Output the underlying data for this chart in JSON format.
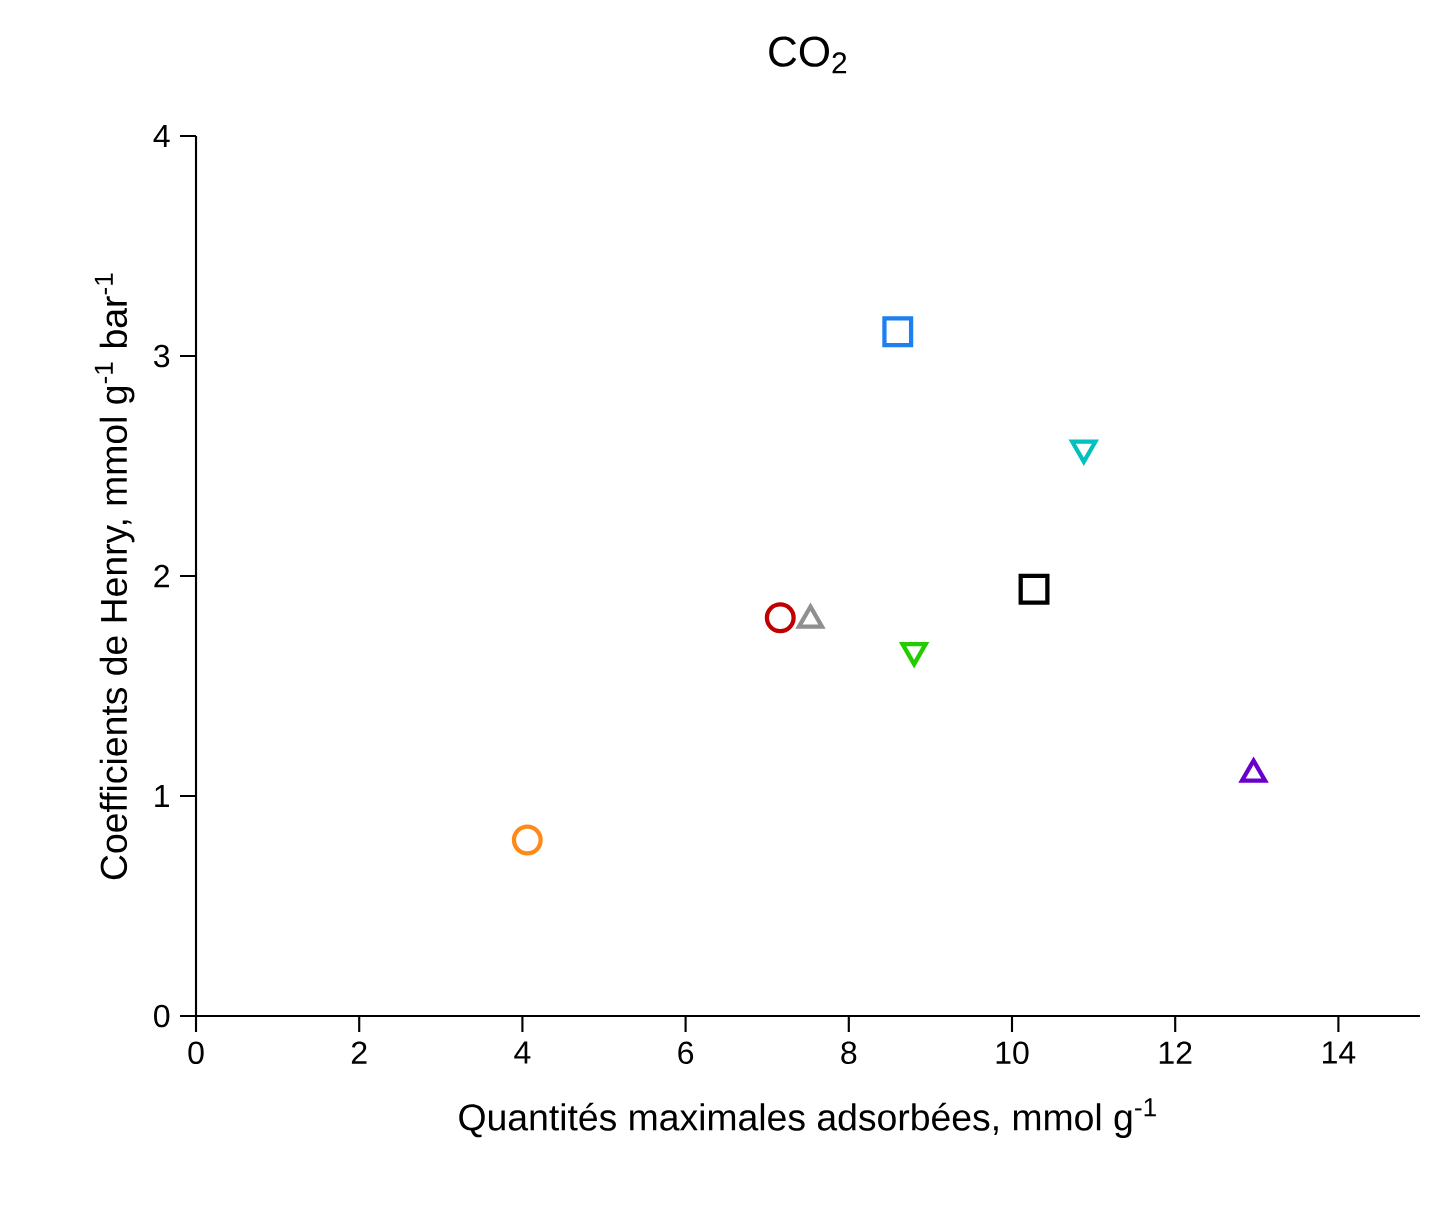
{
  "chart_data": {
    "type": "scatter",
    "title": "CO$_{2}$",
    "xlabel": "Quantités maximales adsorbées, mmol g$^{-1}$",
    "ylabel": "Coefficients de Henry, mmol g$^{-1}$ bar$^{-1}$",
    "xlim": [
      0,
      15
    ],
    "ylim": [
      0,
      4
    ],
    "xticks": [
      0,
      2,
      4,
      6,
      8,
      10,
      12,
      14
    ],
    "yticks": [
      0,
      1,
      2,
      3,
      4
    ],
    "grid": false,
    "series": [
      {
        "color": "#1e7ff0",
        "marker": "square",
        "x": [
          8.6
        ],
        "values": [
          3.11
        ]
      },
      {
        "color": "#00c0c0",
        "marker": "triangle-down",
        "x": [
          10.88
        ],
        "values": [
          2.58
        ]
      },
      {
        "color": "#000000",
        "marker": "square",
        "x": [
          10.27
        ],
        "values": [
          1.94
        ]
      },
      {
        "color": "#22cc00",
        "marker": "triangle-down",
        "x": [
          8.8
        ],
        "values": [
          1.66
        ]
      },
      {
        "color": "#909090",
        "marker": "triangle",
        "x": [
          7.53
        ],
        "values": [
          1.8
        ]
      },
      {
        "color": "#c00000",
        "marker": "circle",
        "x": [
          7.16
        ],
        "values": [
          1.81
        ]
      },
      {
        "color": "#6a00cc",
        "marker": "triangle",
        "x": [
          12.96
        ],
        "values": [
          1.1
        ]
      },
      {
        "color": "#ff8a1a",
        "marker": "circle",
        "x": [
          4.06
        ],
        "values": [
          0.8
        ]
      }
    ]
  }
}
